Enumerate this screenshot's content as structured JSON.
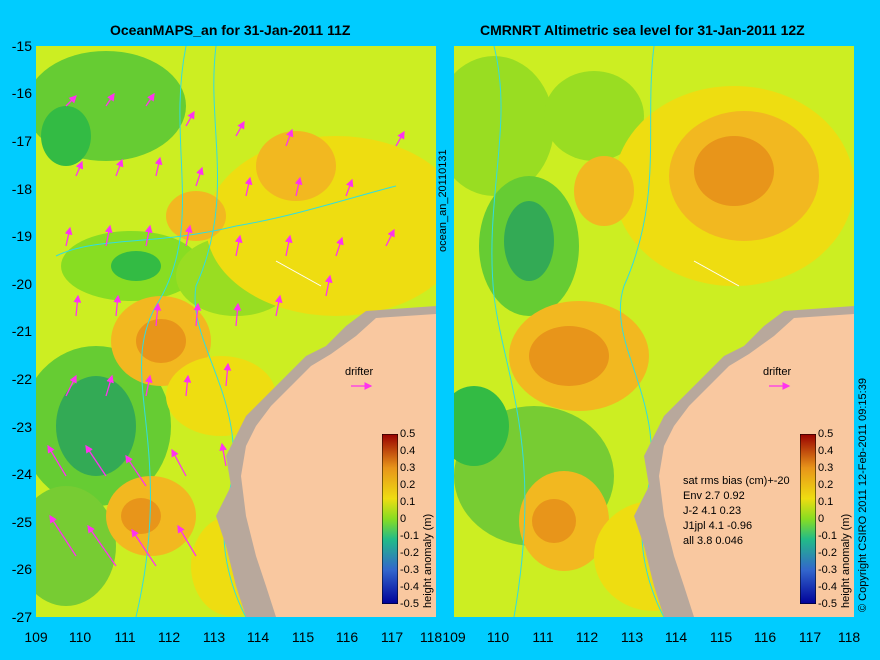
{
  "left": {
    "title": "OceanMAPS_an for 31-Jan-2011 11Z",
    "drifter_label": "drifter",
    "colorbar_label": "height anomaly (m)",
    "side_label": "ocean_an_20110131"
  },
  "right": {
    "title": "CMRNRT Altimetric sea level  for 31-Jan-2011 12Z",
    "drifter_label": "drifter",
    "colorbar_label": "height anomaly (m)",
    "copyright": "© Copyright CSIRO 2011   12-Feb-2011 09:15:39",
    "stats_header": "sat rms bias (cm)+-20",
    "stats": [
      "Env    2.7 0.92",
      "J-2    4.1 0.23",
      "J1jpl  4.1 -0.96",
      "all 3.8 0.046"
    ]
  },
  "y_ticks": [
    "-15",
    "-16",
    "-17",
    "-18",
    "-19",
    "-20",
    "-21",
    "-22",
    "-23",
    "-24",
    "-25",
    "-26",
    "-27"
  ],
  "x_ticks": [
    "109",
    "110",
    "111",
    "112",
    "113",
    "114",
    "115",
    "116",
    "117",
    "118"
  ],
  "colorbar_ticks": [
    "0.5",
    "0.4",
    "0.3",
    "0.2",
    "0.1",
    "0",
    "-0.1",
    "-0.2",
    "-0.3",
    "-0.4",
    "-0.5"
  ],
  "colors": {
    "land": "#f9c8a0",
    "coast_shelf": "#b8a89c",
    "vector": "#ff33ee",
    "contour": "#33dddd",
    "frame_bg": "#00ccff"
  },
  "map_extent": {
    "lon": [
      109,
      118
    ],
    "lat": [
      -27,
      -15
    ]
  }
}
